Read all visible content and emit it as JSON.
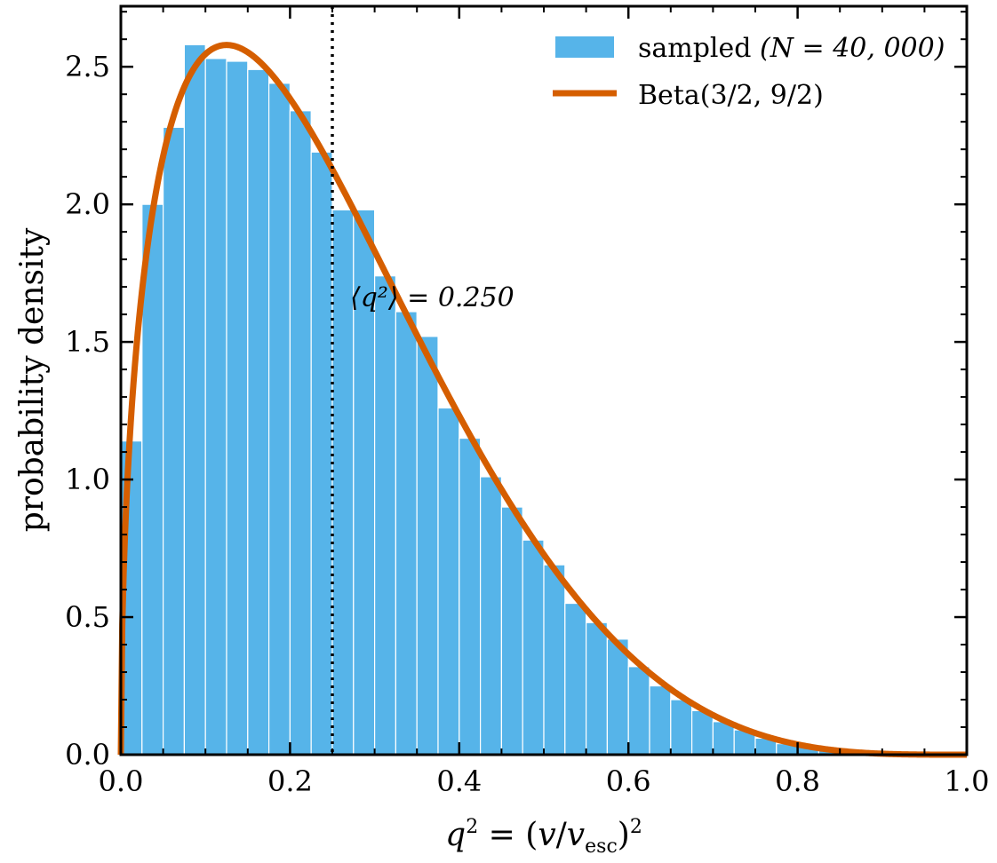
{
  "chart_data": {
    "type": "bar",
    "bin_width": 0.025,
    "bin_starts": [
      0.0,
      0.025,
      0.05,
      0.075,
      0.1,
      0.125,
      0.15,
      0.175,
      0.2,
      0.225,
      0.25,
      0.275,
      0.3,
      0.325,
      0.35,
      0.375,
      0.4,
      0.425,
      0.45,
      0.475,
      0.5,
      0.525,
      0.55,
      0.575,
      0.6,
      0.625,
      0.65,
      0.675,
      0.7,
      0.725,
      0.75,
      0.775,
      0.8,
      0.825,
      0.85,
      0.875,
      0.9,
      0.925,
      0.95,
      0.975
    ],
    "values": [
      1.14,
      2.0,
      2.28,
      2.58,
      2.53,
      2.52,
      2.49,
      2.44,
      2.34,
      2.19,
      1.98,
      1.98,
      1.74,
      1.61,
      1.52,
      1.26,
      1.15,
      1.01,
      0.9,
      0.78,
      0.69,
      0.55,
      0.48,
      0.42,
      0.32,
      0.25,
      0.2,
      0.16,
      0.12,
      0.09,
      0.06,
      0.04,
      0.03,
      0.02,
      0.01,
      0.004,
      0.002,
      0.001,
      0.0,
      0.0
    ],
    "curve": {
      "name_text": "Beta",
      "name_args": "(3/2, 9/2)",
      "alpha": 1.5,
      "beta": 4.5,
      "color": "#d55e00"
    },
    "histogram": {
      "name_text": "sampled ",
      "name_math": "(N = 40, 000)",
      "color": "#56b4e9"
    },
    "mean_line": {
      "x": 0.25,
      "label": "⟨q²⟩ = 0.250"
    },
    "xlabel": "q² = (v/v_esc)²",
    "xlabel_parts": {
      "q": "q",
      "sup2": "2",
      "mid": " = (",
      "v": "v",
      "slash": "/",
      "vesc": "v",
      "sub": "esc",
      "close": ")",
      "sup2b": "2"
    },
    "ylabel": "probability density",
    "xlim": [
      0.0,
      1.0
    ],
    "ylim": [
      0.0,
      2.72
    ],
    "xticks": [
      0.0,
      0.2,
      0.4,
      0.6,
      0.8,
      1.0
    ],
    "xtick_labels": [
      "0.0",
      "0.2",
      "0.4",
      "0.6",
      "0.8",
      "1.0"
    ],
    "yticks": [
      0.0,
      0.5,
      1.0,
      1.5,
      2.0,
      2.5
    ],
    "ytick_labels": [
      "0.0",
      "0.5",
      "1.0",
      "1.5",
      "2.0",
      "2.5"
    ],
    "legend_position": "top-right",
    "grid": false
  }
}
